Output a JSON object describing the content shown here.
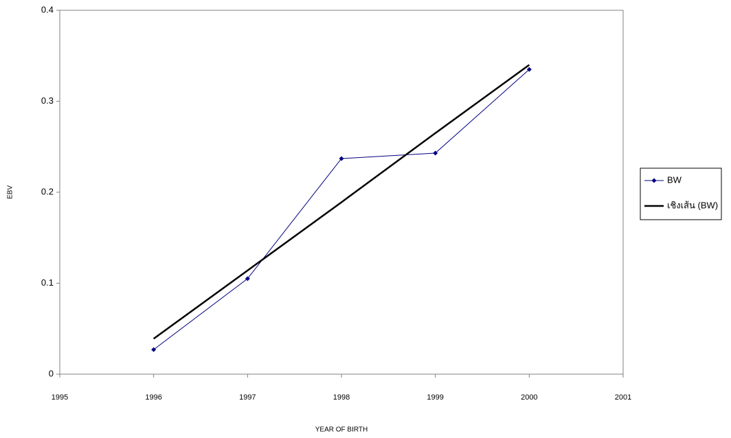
{
  "chart_data": {
    "type": "line",
    "x_label": "YEAR OF BIRTH",
    "y_label": "EBV",
    "x": [
      1996,
      1997,
      1998,
      1999,
      2000
    ],
    "series": [
      {
        "name": "BW",
        "color": "#000080",
        "width": 1,
        "marker": "diamond",
        "values": [
          0.027,
          0.105,
          0.237,
          0.243,
          0.335
        ]
      },
      {
        "name": "เชิงเส้น (BW)",
        "color": "#000000",
        "width": 2.5,
        "values": [
          0.039,
          0.114,
          0.189,
          0.265,
          0.34
        ]
      }
    ],
    "xlim": [
      1995,
      2001
    ],
    "xticks": [
      1995,
      1996,
      1997,
      1998,
      1999,
      2000,
      2001
    ],
    "ylim": [
      0,
      0.4
    ],
    "yticks": [
      0,
      0.1,
      0.2,
      0.3,
      0.4
    ],
    "grid": false,
    "legend": "right"
  }
}
